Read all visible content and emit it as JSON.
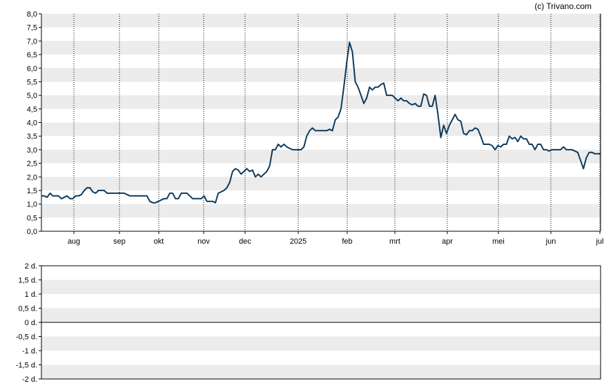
{
  "credit": "(c) Trivano.com",
  "colors": {
    "line": "#0d3a5c",
    "band": "#ececec",
    "axis": "#000000",
    "zero_line": "#000000"
  },
  "chart_data": [
    {
      "type": "line",
      "ylim": [
        0,
        8
      ],
      "y_ticks": [
        "0,0",
        "0,5",
        "1,0",
        "1,5",
        "2,0",
        "2,5",
        "3,0",
        "3,5",
        "4,0",
        "4,5",
        "5,0",
        "5,5",
        "6,0",
        "6,5",
        "7,0",
        "7,5",
        "8,0"
      ],
      "x_ticks": [
        "aug",
        "sep",
        "okt",
        "nov",
        "dec",
        "2025",
        "feb",
        "mrt",
        "apr",
        "mei",
        "jun",
        "jul"
      ],
      "grid": "vertical-dotted, alternating horizontal bands",
      "series": [
        {
          "values": [
            1.3,
            1.3,
            1.25,
            1.4,
            1.3,
            1.3,
            1.3,
            1.2,
            1.25,
            1.3,
            1.2,
            1.2,
            1.3,
            1.3,
            1.35,
            1.5,
            1.6,
            1.6,
            1.45,
            1.4,
            1.5,
            1.5,
            1.5,
            1.4,
            1.4,
            1.4,
            1.4,
            1.4,
            1.4,
            1.4,
            1.35,
            1.3,
            1.3,
            1.3,
            1.3,
            1.3,
            1.3,
            1.3,
            1.1,
            1.05,
            1.05,
            1.1,
            1.15,
            1.2,
            1.2,
            1.4,
            1.4,
            1.2,
            1.2,
            1.4,
            1.4,
            1.4,
            1.3,
            1.2,
            1.2,
            1.2,
            1.2,
            1.3,
            1.1,
            1.1,
            1.1,
            1.05,
            1.4,
            1.45,
            1.5,
            1.6,
            1.8,
            2.2,
            2.3,
            2.25,
            2.1,
            2.2,
            2.3,
            2.2,
            2.25,
            2.0,
            2.1,
            2.0,
            2.1,
            2.2,
            2.4,
            3.0,
            3.0,
            3.2,
            3.1,
            3.2,
            3.1,
            3.05,
            3.0,
            3.0,
            3.0,
            3.0,
            3.1,
            3.5,
            3.7,
            3.8,
            3.7,
            3.7,
            3.7,
            3.7,
            3.7,
            3.75,
            3.7,
            4.1,
            4.2,
            4.5,
            5.3,
            6.2,
            6.95,
            6.6,
            5.5,
            5.3,
            5.0,
            4.7,
            4.9,
            5.3,
            5.2,
            5.3,
            5.3,
            5.4,
            5.45,
            5.0,
            5.0,
            5.0,
            4.9,
            4.8,
            4.9,
            4.8,
            4.8,
            4.7,
            4.65,
            4.7,
            4.6,
            4.6,
            5.05,
            5.0,
            4.6,
            4.6,
            5.0,
            4.3,
            3.45,
            3.9,
            3.6,
            3.9,
            4.1,
            4.3,
            4.1,
            4.05,
            3.6,
            3.55,
            3.7,
            3.7,
            3.8,
            3.75,
            3.5,
            3.2,
            3.2,
            3.2,
            3.15,
            3.0,
            3.15,
            3.1,
            3.2,
            3.2,
            3.5,
            3.4,
            3.45,
            3.3,
            3.5,
            3.4,
            3.4,
            3.2,
            3.2,
            3.0,
            3.2,
            3.2,
            3.0,
            3.0,
            2.95,
            3.0,
            3.0,
            3.0,
            3.0,
            3.1,
            3.0,
            3.0,
            3.0,
            2.95,
            2.9,
            2.6,
            2.3,
            2.7,
            2.9,
            2.9,
            2.85,
            2.85,
            2.85
          ]
        }
      ]
    },
    {
      "type": "line",
      "ylim": [
        -2,
        2
      ],
      "y_ticks": [
        "-2 d.",
        "-1,5 d.",
        "-1 d.",
        "-0,5 d.",
        "0 d.",
        "0,5 d.",
        "1 d.",
        "1,5 d.",
        "2 d."
      ],
      "x_ticks": [],
      "grid": "alternating horizontal bands, zero line",
      "series": []
    }
  ]
}
